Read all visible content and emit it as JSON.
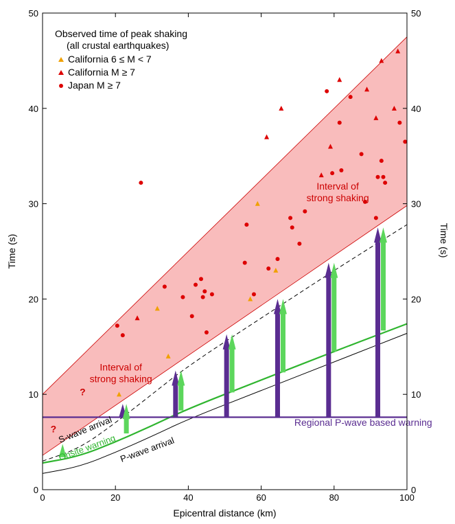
{
  "chart_data": {
    "type": "scatter",
    "title": "",
    "xlabel": "Epicentral distance (km)",
    "ylabel": "Time (s)",
    "ylabel_right": "Time (s)",
    "xlim": [
      0,
      100
    ],
    "ylim": [
      0,
      50
    ],
    "x_ticks": [
      0,
      20,
      40,
      60,
      80,
      100
    ],
    "y_ticks": [
      0,
      10,
      20,
      30,
      40,
      50
    ],
    "grid": false,
    "legend": {
      "title_line1": "Observed time of peak shaking",
      "title_line2": "(all crustal earthquakes)",
      "placement": "top-left",
      "entries": [
        {
          "label": "California 6 ≤ M < 7",
          "marker": "triangle",
          "color": "#f0a000"
        },
        {
          "label": "California M ≥ 7",
          "marker": "triangle",
          "color": "#dd0000"
        },
        {
          "label": "Japan M ≥ 7",
          "marker": "circle",
          "color": "#dd0000"
        }
      ]
    },
    "shaded_band": {
      "label": "Interval of strong shaking",
      "color": "#f9bcbc",
      "edge_color": "#cc0000",
      "lower": [
        [
          0,
          3.6
        ],
        [
          100,
          29.8
        ]
      ],
      "upper": [
        [
          0,
          10.0
        ],
        [
          100,
          47.5
        ]
      ]
    },
    "series": [
      {
        "name": "California 6 ≤ M < 7",
        "marker": "triangle",
        "color": "#f0a000",
        "points": [
          [
            21,
            10.0
          ],
          [
            31.5,
            19.0
          ],
          [
            34.5,
            14.0
          ],
          [
            57,
            20.0
          ],
          [
            59,
            30.0
          ],
          [
            64,
            23.0
          ]
        ]
      },
      {
        "name": "California M ≥ 7",
        "marker": "triangle",
        "color": "#dd0000",
        "points": [
          [
            26,
            18.0
          ],
          [
            61.5,
            37.0
          ],
          [
            65.5,
            40.0
          ],
          [
            76.5,
            33.0
          ],
          [
            79,
            36.0
          ],
          [
            81.5,
            43.0
          ],
          [
            89,
            42.0
          ],
          [
            91.5,
            39.0
          ],
          [
            93,
            45.0
          ],
          [
            96.5,
            40.0
          ],
          [
            97.5,
            46.0
          ]
        ]
      },
      {
        "name": "Japan M ≥ 7",
        "marker": "circle",
        "color": "#dd0000",
        "points": [
          [
            20.5,
            17.2
          ],
          [
            22,
            16.2
          ],
          [
            27,
            32.2
          ],
          [
            33.5,
            21.3
          ],
          [
            38.5,
            20.2
          ],
          [
            41,
            18.2
          ],
          [
            42,
            21.5
          ],
          [
            43.5,
            22.1
          ],
          [
            44,
            20.2
          ],
          [
            44.5,
            20.8
          ],
          [
            45,
            16.5
          ],
          [
            46.5,
            20.5
          ],
          [
            55.5,
            23.8
          ],
          [
            56,
            27.8
          ],
          [
            58,
            20.5
          ],
          [
            62,
            23.2
          ],
          [
            64.5,
            24.2
          ],
          [
            68,
            28.5
          ],
          [
            68.5,
            27.5
          ],
          [
            70.5,
            25.8
          ],
          [
            72,
            29.2
          ],
          [
            78,
            41.8
          ],
          [
            79.5,
            33.2
          ],
          [
            81.5,
            38.5
          ],
          [
            82,
            33.5
          ],
          [
            84.5,
            41.2
          ],
          [
            87.5,
            35.2
          ],
          [
            88.5,
            30.2
          ],
          [
            91.5,
            28.5
          ],
          [
            92,
            32.8
          ],
          [
            93,
            34.5
          ],
          [
            93.5,
            32.8
          ],
          [
            94,
            32.2
          ],
          [
            98,
            38.5
          ],
          [
            99.5,
            36.5
          ]
        ]
      }
    ],
    "lines": [
      {
        "name": "S-wave arrival",
        "style": "dashed",
        "color": "#000000",
        "points": [
          [
            0,
            3.0
          ],
          [
            10,
            4.3
          ],
          [
            20,
            7.0
          ],
          [
            30,
            10.0
          ],
          [
            40,
            13.0
          ],
          [
            60,
            18.0
          ],
          [
            80,
            23.0
          ],
          [
            100,
            27.8
          ]
        ]
      },
      {
        "name": "P-wave arrival",
        "style": "solid",
        "color": "#000000",
        "points": [
          [
            0,
            1.7
          ],
          [
            10,
            2.4
          ],
          [
            20,
            3.9
          ],
          [
            30,
            5.6
          ],
          [
            40,
            7.4
          ],
          [
            60,
            10.4
          ],
          [
            80,
            13.4
          ],
          [
            100,
            16.4
          ]
        ]
      },
      {
        "name": "Onsite warning",
        "style": "solid",
        "color": "#2fb52f",
        "points": [
          [
            0,
            2.8
          ],
          [
            10,
            3.5
          ],
          [
            20,
            5.0
          ],
          [
            30,
            6.7
          ],
          [
            40,
            8.5
          ],
          [
            60,
            11.5
          ],
          [
            80,
            14.5
          ],
          [
            100,
            17.4
          ]
        ]
      },
      {
        "name": "Regional P-wave based warning",
        "style": "solid",
        "color": "#5a2d91",
        "points": [
          [
            0,
            7.6
          ],
          [
            100,
            7.6
          ]
        ]
      }
    ],
    "arrows": [
      {
        "kind": "regional",
        "x": 22,
        "y_start": 7.6,
        "y_end": 9.0
      },
      {
        "kind": "onsite",
        "x": 23,
        "y_start": 5.9,
        "y_end": 9.0
      },
      {
        "kind": "regional",
        "x": 36.5,
        "y_start": 7.6,
        "y_end": 12.5
      },
      {
        "kind": "onsite",
        "x": 38,
        "y_start": 8.3,
        "y_end": 12.5
      },
      {
        "kind": "regional",
        "x": 50.5,
        "y_start": 7.6,
        "y_end": 16.3
      },
      {
        "kind": "onsite",
        "x": 52,
        "y_start": 10.2,
        "y_end": 16.3
      },
      {
        "kind": "regional",
        "x": 64.5,
        "y_start": 7.6,
        "y_end": 20.0
      },
      {
        "kind": "onsite",
        "x": 66,
        "y_start": 12.3,
        "y_end": 20.0
      },
      {
        "kind": "regional",
        "x": 78.5,
        "y_start": 7.6,
        "y_end": 23.8
      },
      {
        "kind": "onsite",
        "x": 80,
        "y_start": 14.5,
        "y_end": 23.8
      },
      {
        "kind": "regional",
        "x": 92,
        "y_start": 7.6,
        "y_end": 27.5
      },
      {
        "kind": "onsite",
        "x": 93.5,
        "y_start": 16.7,
        "y_end": 27.5
      },
      {
        "kind": "onsite",
        "x": 5.5,
        "y_start": 3.4,
        "y_end": 4.8
      }
    ],
    "annotations": [
      {
        "text_line1": "Interval of",
        "text_line2": "strong shaking",
        "x": 81,
        "y": 31.5,
        "color": "#cc0000"
      },
      {
        "text_line1": "Interval of",
        "text_line2": "strong shaking",
        "x": 21.5,
        "y": 12.5,
        "color": "#cc0000"
      },
      {
        "text": "Regional P-wave based warning",
        "x": 88,
        "y": 6.7,
        "color": "#5a2d91"
      },
      {
        "text": "S-wave arrival",
        "x": 12,
        "y": 6.0,
        "rotate": -22,
        "color": "#000000"
      },
      {
        "text": "Onsite warning",
        "x": 12.5,
        "y": 4.1,
        "rotate": -20,
        "color": "#2fb52f"
      },
      {
        "text": "P-wave arrival",
        "x": 29,
        "y": 3.9,
        "rotate": -20,
        "color": "#000000"
      },
      {
        "text": "?",
        "x": 3,
        "y": 6.0,
        "color": "#cc0000"
      },
      {
        "text": "?",
        "x": 11,
        "y": 9.9,
        "color": "#cc0000"
      }
    ]
  }
}
